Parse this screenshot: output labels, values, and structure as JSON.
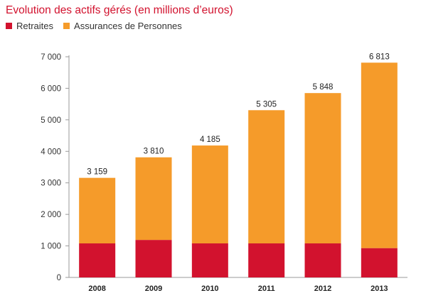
{
  "chart_data": {
    "type": "bar",
    "stacked": true,
    "title": "Evolution des actifs gérés (en millions d’euros)",
    "categories": [
      "2008",
      "2009",
      "2010",
      "2011",
      "2012",
      "2013"
    ],
    "series": [
      {
        "name": "Retraites",
        "color": "#d2122e",
        "values": [
          1080,
          1190,
          1080,
          1080,
          1080,
          930
        ]
      },
      {
        "name": "Assurances de Personnes",
        "color": "#f59b2a",
        "values": [
          2079,
          2620,
          3105,
          4225,
          4768,
          5883
        ]
      }
    ],
    "totals": [
      3159,
      3810,
      4185,
      5305,
      5848,
      6813
    ],
    "total_labels": [
      "3 159",
      "3 810",
      "4 185",
      "5 305",
      "5 848",
      "6 813"
    ],
    "ylim": [
      0,
      7000
    ],
    "yticks": [
      0,
      1000,
      2000,
      3000,
      4000,
      5000,
      6000,
      7000
    ],
    "ytick_labels": [
      "0",
      "1 000",
      "2 000",
      "3 000",
      "4 000",
      "5 000",
      "6 000",
      "7 000"
    ],
    "xlabel": "",
    "ylabel": "",
    "grid": false,
    "legend_position": "top-left"
  }
}
